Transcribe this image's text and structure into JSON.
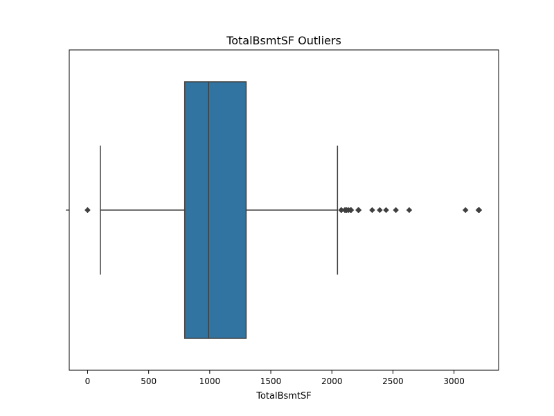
{
  "chart_data": {
    "type": "boxplot",
    "title": "TotalBsmtSF Outliers",
    "xlabel": "TotalBsmtSF",
    "ylabel": "",
    "xlim": [
      -150,
      3365
    ],
    "xticks": [
      0,
      500,
      1000,
      1500,
      2000,
      2500,
      3000
    ],
    "xtick_labels": [
      "0",
      "500",
      "1000",
      "1500",
      "2000",
      "2500",
      "3000"
    ],
    "grid": false,
    "legend": "none",
    "box": {
      "whisker_low": 105,
      "q1": 795,
      "median": 991,
      "q3": 1298,
      "whisker_high": 2046
    },
    "outliers": [
      0,
      0,
      0,
      2076,
      2078,
      2106,
      2110,
      2121,
      2136,
      2153,
      2158,
      2216,
      2220,
      2330,
      2392,
      2444,
      2524,
      2633,
      3094,
      3200,
      3206
    ],
    "colors": {
      "box_fill": "#3274a1",
      "line": "#3f3f3f",
      "frame": "#000000",
      "text": "#000000"
    }
  }
}
